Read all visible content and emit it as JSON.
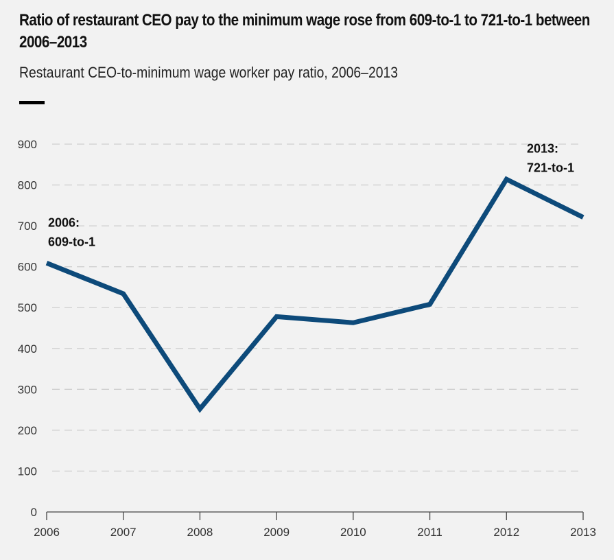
{
  "title": "Ratio of restaurant CEO pay to the minimum wage rose from 609-to-1 to 721-to-1 between 2006–2013",
  "subtitle": "Restaurant CEO-to-minimum wage worker pay ratio, 2006–2013",
  "colors": {
    "line": "#0d4a7a",
    "grid": "#cfcfcf",
    "background": "#f2f2f2"
  },
  "chart_data": {
    "type": "line",
    "title": "Ratio of restaurant CEO pay to the minimum wage rose from 609-to-1 to 721-to-1 between 2006–2013",
    "subtitle": "Restaurant CEO-to-minimum wage worker pay ratio, 2006–2013",
    "x": [
      "2006",
      "2007",
      "2008",
      "2009",
      "2010",
      "2011",
      "2012",
      "2013"
    ],
    "series": [
      {
        "values": [
          609,
          534,
          252,
          478,
          463,
          508,
          814,
          721
        ]
      }
    ],
    "ylim": [
      0,
      900
    ],
    "yticks": [
      "0",
      "100",
      "200",
      "300",
      "400",
      "500",
      "600",
      "700",
      "800",
      "900"
    ],
    "grid": true,
    "annotations": [
      {
        "x": "2006",
        "line1": "2006:",
        "line2": "609-to-1"
      },
      {
        "x": "2013",
        "line1": "2013:",
        "line2": "721-to-1"
      }
    ]
  }
}
